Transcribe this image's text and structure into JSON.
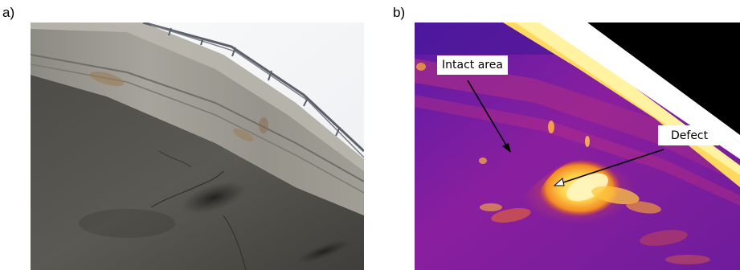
{
  "figure": {
    "panel_a": {
      "label": "a)"
    },
    "panel_b": {
      "label": "b)",
      "annotations": [
        {
          "id": "intact",
          "text": "Intact area"
        },
        {
          "id": "defect",
          "text": "Defect"
        }
      ]
    }
  },
  "colors": {
    "concrete_dark": "#4a4843",
    "concrete_light": "#a9a69e",
    "sky": "#f4f5f7",
    "thermal_purple": "#7a1fa0",
    "thermal_hot": "#ffe680"
  }
}
